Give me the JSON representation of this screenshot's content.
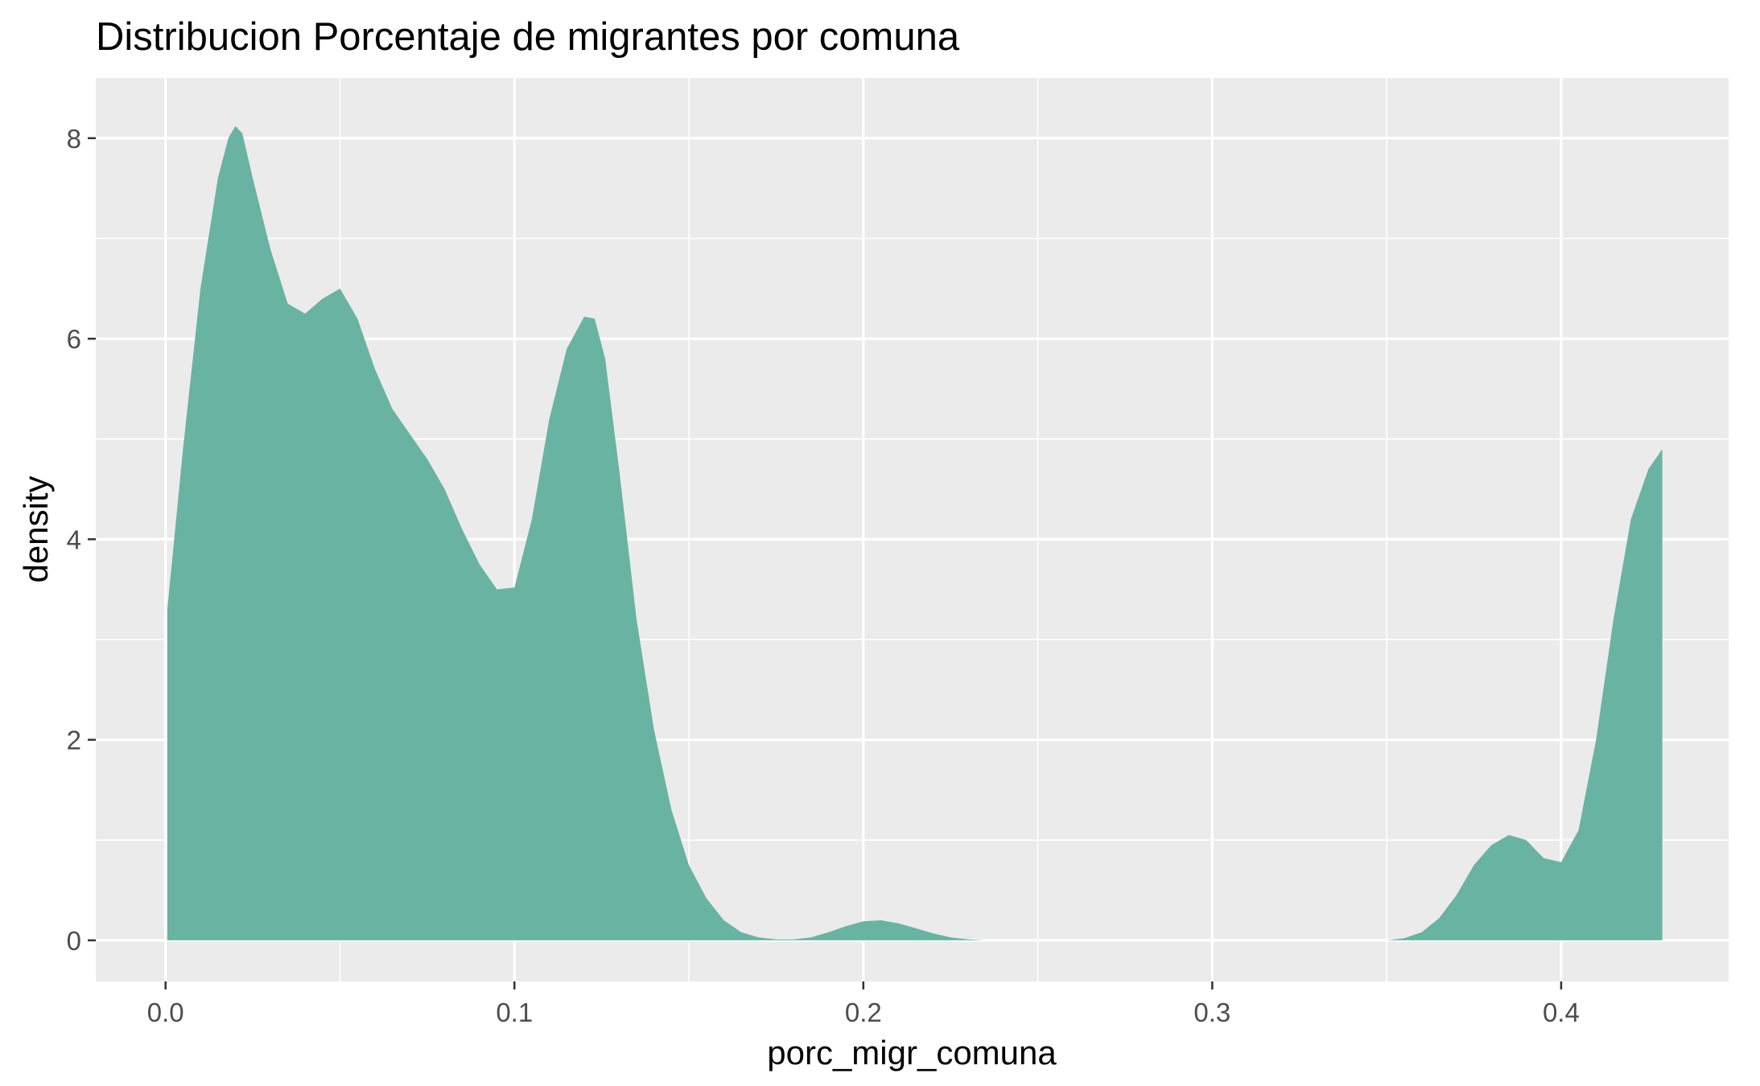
{
  "chart_data": {
    "type": "area",
    "title": "Distribucion Porcentaje de migrantes por comuna",
    "xlabel": "porc_migr_comuna",
    "ylabel": "density",
    "xlim": [
      -0.02,
      0.448
    ],
    "ylim": [
      -0.41,
      8.6
    ],
    "x_ticks": [
      0.0,
      0.1,
      0.2,
      0.3,
      0.4
    ],
    "x_tick_labels": [
      "0.0",
      "0.1",
      "0.2",
      "0.3",
      "0.4"
    ],
    "y_ticks": [
      0,
      2,
      4,
      6,
      8
    ],
    "y_tick_labels": [
      "0",
      "2",
      "4",
      "6",
      "8"
    ],
    "grid": true,
    "legend": "none",
    "fill_color": "#69b3a2",
    "series": [
      {
        "x": [
          0.0005,
          0.005,
          0.01,
          0.015,
          0.018,
          0.02,
          0.022,
          0.025,
          0.03,
          0.035,
          0.04,
          0.045,
          0.05,
          0.055,
          0.06,
          0.065,
          0.07,
          0.075,
          0.08,
          0.085,
          0.09,
          0.095,
          0.1,
          0.105,
          0.11,
          0.115,
          0.12,
          0.123,
          0.126,
          0.13,
          0.135,
          0.14,
          0.145,
          0.15,
          0.155,
          0.16,
          0.165,
          0.17,
          0.175,
          0.18,
          0.185,
          0.19,
          0.195,
          0.2,
          0.205,
          0.21,
          0.215,
          0.22,
          0.225,
          0.23,
          0.235,
          0.24,
          0.35,
          0.355,
          0.36,
          0.365,
          0.37,
          0.375,
          0.38,
          0.385,
          0.39,
          0.395,
          0.4,
          0.405,
          0.41,
          0.415,
          0.42,
          0.425,
          0.429
        ],
        "y": [
          3.3,
          4.9,
          6.5,
          7.6,
          8.0,
          8.12,
          8.05,
          7.6,
          6.9,
          6.35,
          6.25,
          6.4,
          6.5,
          6.2,
          5.7,
          5.3,
          5.05,
          4.8,
          4.5,
          4.1,
          3.75,
          3.5,
          3.52,
          4.2,
          5.2,
          5.9,
          6.22,
          6.2,
          5.8,
          4.7,
          3.2,
          2.1,
          1.3,
          0.75,
          0.42,
          0.2,
          0.08,
          0.03,
          0.01,
          0.01,
          0.03,
          0.08,
          0.14,
          0.19,
          0.2,
          0.17,
          0.12,
          0.07,
          0.03,
          0.01,
          0.0,
          0.0,
          0.0,
          0.02,
          0.08,
          0.22,
          0.45,
          0.75,
          0.95,
          1.05,
          1.0,
          0.82,
          0.78,
          1.1,
          2.0,
          3.2,
          4.2,
          4.7,
          4.9
        ]
      }
    ]
  }
}
